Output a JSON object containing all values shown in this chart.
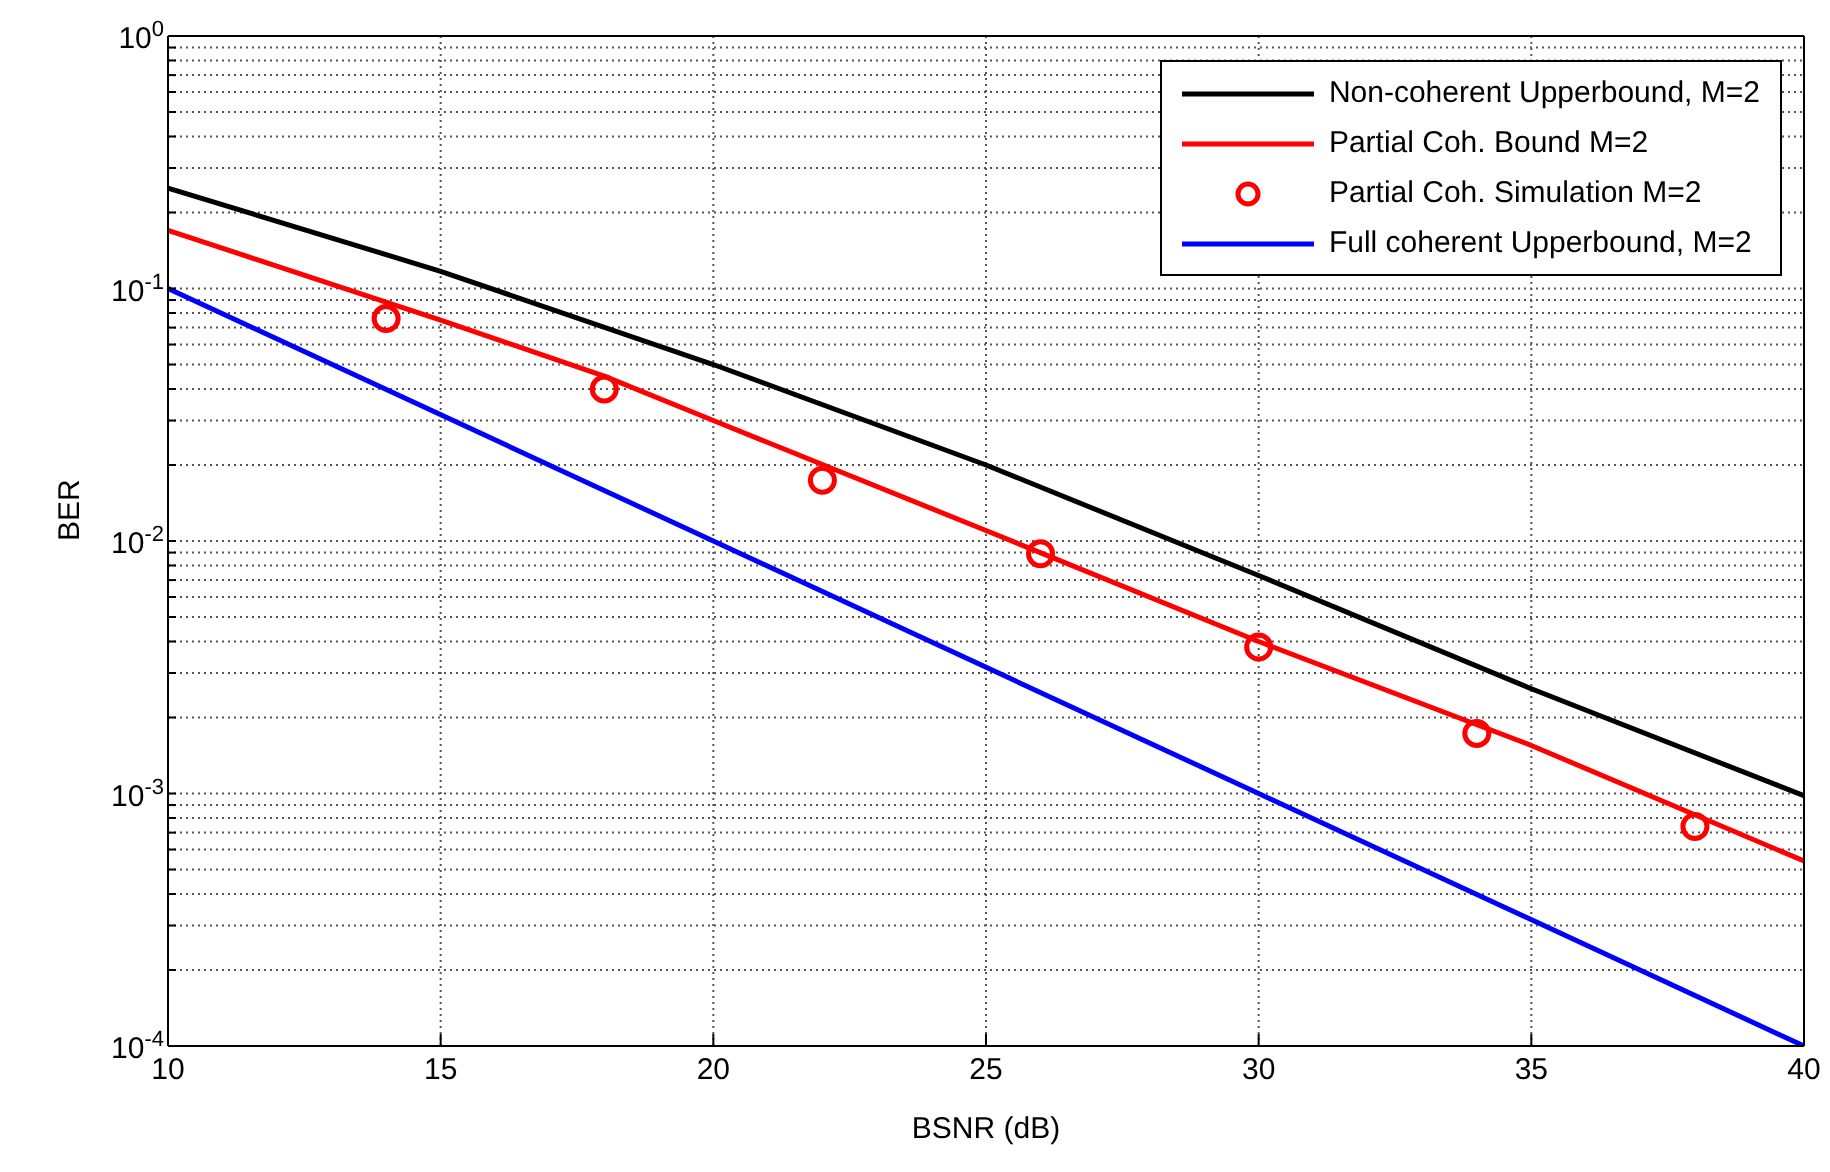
{
  "chart_data": {
    "type": "line",
    "xlabel": "BSNR (dB)",
    "ylabel": "BER",
    "log": "y",
    "grid": true,
    "legend": "top right",
    "line_style": "solid",
    "xlim": [
      10,
      40
    ],
    "xticks": [
      10,
      15,
      20,
      25,
      30,
      35,
      40
    ],
    "ylim": [
      0.0001,
      1
    ],
    "yticks": [
      {
        "value": 0.0001,
        "label": "10$^{-4}$"
      },
      {
        "value": 0.0002,
        "label": null
      },
      {
        "value": 0.0003,
        "label": null
      },
      {
        "value": 0.0004,
        "label": null
      },
      {
        "value": 0.0005,
        "label": null
      },
      {
        "value": 0.0006,
        "label": null
      },
      {
        "value": 0.0007,
        "label": null
      },
      {
        "value": 0.0008,
        "label": null
      },
      {
        "value": 0.0009,
        "label": null
      },
      {
        "value": 0.001,
        "label": "10$^{-3}$"
      },
      {
        "value": 0.002,
        "label": null
      },
      {
        "value": 0.003,
        "label": null
      },
      {
        "value": 0.004,
        "label": null
      },
      {
        "value": 0.005,
        "label": null
      },
      {
        "value": 0.006,
        "label": null
      },
      {
        "value": 0.007,
        "label": null
      },
      {
        "value": 0.008,
        "label": null
      },
      {
        "value": 0.009,
        "label": null
      },
      {
        "value": 0.01,
        "label": "10$^{-2}$"
      },
      {
        "value": 0.02,
        "label": null
      },
      {
        "value": 0.03,
        "label": null
      },
      {
        "value": 0.04,
        "label": null
      },
      {
        "value": 0.05,
        "label": null
      },
      {
        "value": 0.06,
        "label": null
      },
      {
        "value": 0.07,
        "label": null
      },
      {
        "value": 0.08,
        "label": null
      },
      {
        "value": 0.09,
        "label": null
      },
      {
        "value": 0.1,
        "label": "10$^{-1}$"
      },
      {
        "value": 0.2,
        "label": null
      },
      {
        "value": 0.3,
        "label": null
      },
      {
        "value": 0.4,
        "label": null
      },
      {
        "value": 0.5,
        "label": null
      },
      {
        "value": 0.6,
        "label": null
      },
      {
        "value": 0.7,
        "label": null
      },
      {
        "value": 0.8,
        "label": null
      },
      {
        "value": 0.9,
        "label": null
      },
      {
        "value": 1,
        "label": "10$^{0}$"
      }
    ],
    "series": [
      {
        "name": "Non-coherent Upperbound, M=2",
        "marker": "none",
        "color": "#000000",
        "x": [
          10,
          15,
          20,
          25,
          30,
          35,
          40
        ],
        "values": [
          0.25,
          0.117,
          0.05,
          0.02,
          0.0073,
          0.0026,
          0.00098
        ]
      },
      {
        "name": "Partial Coh. Bound M=2",
        "marker": "none",
        "color": "#ff0000",
        "x": [
          10,
          15,
          18,
          20,
          25,
          30,
          35,
          40
        ],
        "values": [
          0.17,
          0.075,
          0.045,
          0.03,
          0.011,
          0.004,
          0.00155,
          0.00054
        ]
      },
      {
        "name": "Partial Coh. Simulation M=2",
        "type": "scatter",
        "marker": "circle",
        "color": "#ff0000",
        "x": [
          14,
          18,
          22,
          26,
          30,
          34,
          38
        ],
        "values": [
          0.076,
          0.04,
          0.0174,
          0.0089,
          0.0038,
          0.00173,
          0.00074
        ]
      },
      {
        "name": "Full coherent Upperbound, M=2",
        "marker": "none",
        "color": "#0000ff",
        "x": [
          10,
          20,
          30,
          40
        ],
        "values": [
          0.1,
          0.01,
          0.001,
          0.0001
        ]
      }
    ]
  }
}
